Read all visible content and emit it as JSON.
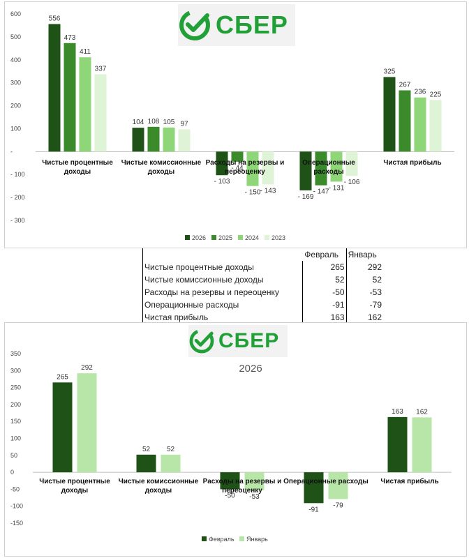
{
  "logo": {
    "text": "СБЕР",
    "color": "#21a038"
  },
  "colors": {
    "c2026": "#1e5216",
    "c2025": "#3b8a2c",
    "c2024": "#8fd678",
    "c2023": "#dff3d6",
    "feb": "#1e5216",
    "jan": "#b8e6a8"
  },
  "chart_data": [
    {
      "type": "bar",
      "title": "",
      "categories": [
        [
          "Чистые процентные",
          "доходы"
        ],
        [
          "Чистые комиссионные",
          "доходы"
        ],
        [
          "Расходы на резервы и",
          "переоценку"
        ],
        [
          "Операционные",
          "расходы"
        ],
        [
          "Чистая прибыль"
        ]
      ],
      "series": [
        {
          "name": "2026",
          "values": [
            556,
            104,
            -103,
            -169,
            325
          ]
        },
        {
          "name": "2025",
          "values": [
            473,
            108,
            -44,
            -147,
            267
          ]
        },
        {
          "name": "2024",
          "values": [
            411,
            105,
            -150,
            -131,
            236
          ]
        },
        {
          "name": "2023",
          "values": [
            337,
            97,
            -143,
            -106,
            225
          ]
        }
      ],
      "labels": [
        [
          "556",
          "104",
          "- 103",
          "- 169",
          "325"
        ],
        [
          "473",
          "108",
          "- 44",
          "- 147",
          "267"
        ],
        [
          "411",
          "105",
          "- 150",
          "- 131",
          "236"
        ],
        [
          "337",
          "97",
          "- 143",
          "- 106",
          "225"
        ]
      ],
      "ylim": [
        -300,
        600
      ],
      "yticks": [
        600,
        500,
        400,
        300,
        200,
        100,
        0,
        -100,
        -200,
        -300
      ],
      "ytick_labels": [
        "600",
        "500",
        "400",
        "300",
        "200",
        "100",
        "-",
        "- 100",
        "- 200",
        "- 300"
      ],
      "legend": "bottom",
      "grid": false
    },
    {
      "type": "bar",
      "title": "2026",
      "categories": [
        [
          "Чистые процентные",
          "доходы"
        ],
        [
          "Чистые комиссионные",
          "доходы"
        ],
        [
          "Расходы на резервы и",
          "переоценку"
        ],
        [
          "Операционные расходы"
        ],
        [
          "Чистая прибыль"
        ]
      ],
      "series": [
        {
          "name": "Февраль",
          "values": [
            265,
            52,
            -50,
            -91,
            163
          ]
        },
        {
          "name": "Январь",
          "values": [
            292,
            52,
            -53,
            -79,
            162
          ]
        }
      ],
      "labels": [
        [
          "265",
          "52",
          "-50",
          "-91",
          "163"
        ],
        [
          "292",
          "52",
          "-53",
          "-79",
          "162"
        ]
      ],
      "ylim": [
        -150,
        350
      ],
      "yticks": [
        350,
        300,
        250,
        200,
        150,
        100,
        50,
        0,
        -50,
        -100,
        -150
      ],
      "ytick_labels": [
        "350",
        "300",
        "250",
        "200",
        "150",
        "100",
        "50",
        "0",
        "-50",
        "-100",
        "-150"
      ],
      "legend": "bottom",
      "grid": false
    }
  ],
  "table": {
    "headers": [
      "Февраль",
      "Январь"
    ],
    "rows": [
      {
        "label": "Чистые процентные доходы",
        "feb": "265",
        "jan": "292"
      },
      {
        "label": "Чистые комиссионные доходы",
        "feb": "52",
        "jan": "52"
      },
      {
        "label": "Расходы на резервы и переоценку",
        "feb": "-50",
        "jan": "-53"
      },
      {
        "label": "Операционные расходы",
        "feb": "-91",
        "jan": "-79"
      },
      {
        "label": "Чистая прибыль",
        "feb": "163",
        "jan": "162"
      }
    ]
  }
}
